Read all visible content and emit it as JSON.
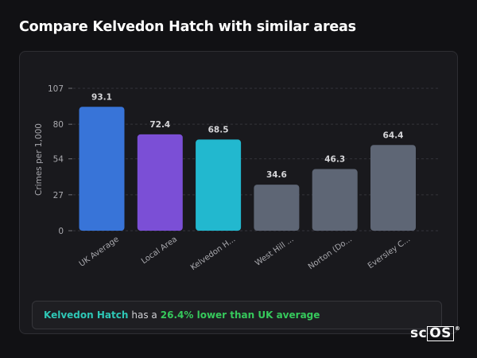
{
  "page": {
    "title": "Compare Kelvedon Hatch with similar areas"
  },
  "chart_data": {
    "type": "bar",
    "ylabel": "Crimes per 1,000",
    "xlabel": "",
    "ylim": [
      0,
      107
    ],
    "yticks": [
      0,
      27,
      54,
      80,
      107
    ],
    "categories": [
      "UK Average",
      "Local Area",
      "Kelvedon H...",
      "West Hill ...",
      "Norton (Do...",
      "Eversley C..."
    ],
    "values": [
      93.1,
      72.4,
      68.5,
      34.6,
      46.3,
      64.4
    ],
    "value_labels": [
      "93.1",
      "72.4",
      "68.5",
      "34.6",
      "46.3",
      "64.4"
    ],
    "colors": [
      "#3874d8",
      "#7b4fd6",
      "#22b8cf",
      "#5e6675",
      "#5e6675",
      "#5e6675"
    ],
    "grid": "horizontal dashed"
  },
  "summary": {
    "area": "Kelvedon Hatch",
    "middle": "has a",
    "comparison": "26.4% lower than UK average",
    "colors": {
      "area": "#2ec7b6",
      "comparison": "#36c95c"
    }
  },
  "logo": {
    "text_prefix": "sc",
    "text_boxed": "OS",
    "mark": "®"
  }
}
